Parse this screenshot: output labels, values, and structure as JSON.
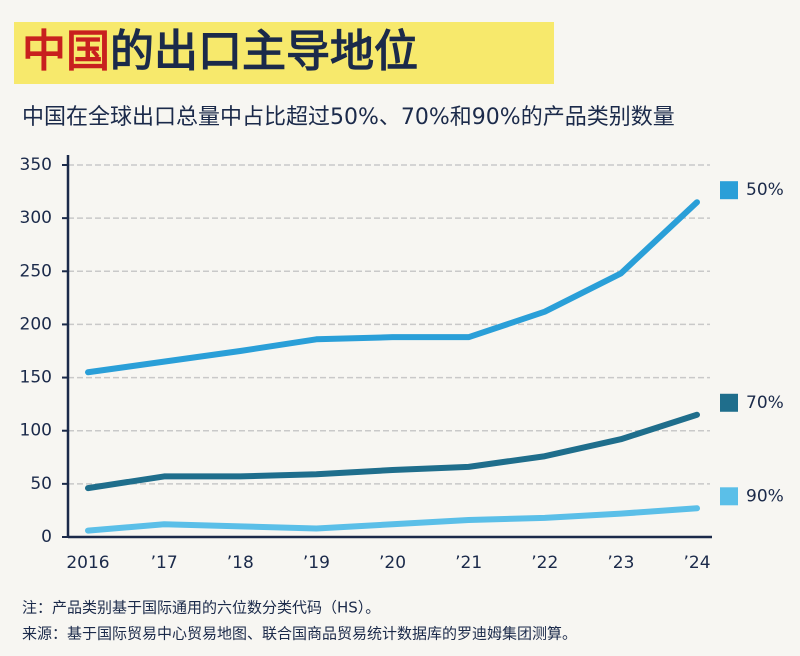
{
  "chart_data": {
    "type": "line",
    "title": [
      "中国",
      "的出口主导地位"
    ],
    "subtitle": "中国在全球出口总量中占比超过50%、70%和90%的产品类别数量",
    "categories": [
      "2016",
      "’17",
      "’18",
      "’19",
      "’20",
      "’21",
      "’22",
      "’23",
      "’24"
    ],
    "series": [
      {
        "name": "50%",
        "color": "#2a9fd8",
        "values": [
          155,
          165,
          175,
          186,
          188,
          188,
          212,
          248,
          315
        ]
      },
      {
        "name": "70%",
        "color": "#1f6e8c",
        "values": [
          46,
          57,
          57,
          59,
          63,
          66,
          76,
          92,
          115
        ]
      },
      {
        "name": "90%",
        "color": "#5bbfe8",
        "values": [
          6,
          12,
          10,
          8,
          12,
          16,
          18,
          22,
          27
        ]
      }
    ],
    "ylim": [
      0,
      350
    ],
    "yticks": [
      0,
      50,
      100,
      150,
      200,
      250,
      300,
      350
    ],
    "grid": true,
    "notes": [
      "注：产品类别基于国际通用的六位数分类代码（HS）。",
      "来源：基于国际贸易中心贸易地图、联合国商品贸易统计数据库的罗迪姆集团测算。"
    ]
  }
}
